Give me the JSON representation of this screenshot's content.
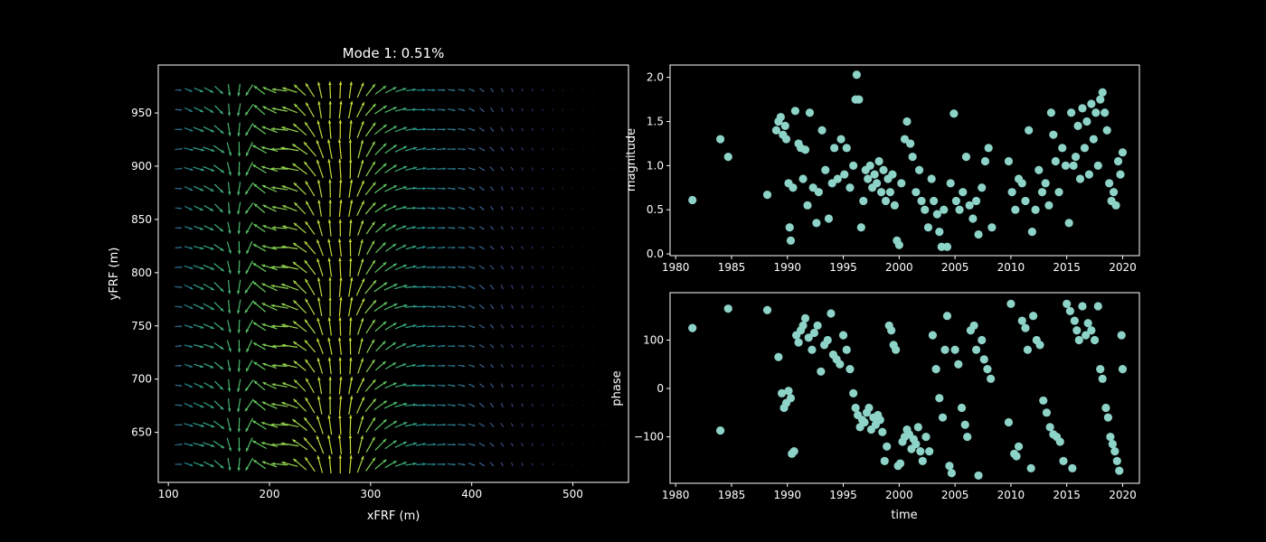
{
  "chart_data": [
    {
      "type": "quiver",
      "title": "Mode 1: 0.51%",
      "xlabel": "xFRF (m)",
      "ylabel": "yFRF (m)",
      "xlim": [
        90,
        555
      ],
      "ylim": [
        603,
        995
      ],
      "xticks": [
        100,
        200,
        300,
        400,
        500
      ],
      "yticks": [
        650,
        700,
        750,
        800,
        850,
        900,
        950
      ],
      "grid": false,
      "colormap": "viridis",
      "x_range": [
        110,
        545
      ],
      "x_step": 10,
      "y_range": [
        620,
        980
      ],
      "y_step": 18.5,
      "columns": [
        {
          "x": 110,
          "angle_deg": 0,
          "mag": 0.35
        },
        {
          "x": 120,
          "angle_deg": -20,
          "mag": 0.45
        },
        {
          "x": 130,
          "angle_deg": -20,
          "mag": 0.55
        },
        {
          "x": 140,
          "angle_deg": -25,
          "mag": 0.58
        },
        {
          "x": 150,
          "angle_deg": -40,
          "mag": 0.62
        },
        {
          "x": 160,
          "angle_deg": -80,
          "mag": 0.65
        },
        {
          "x": 170,
          "angle_deg": -95,
          "mag": 0.68
        },
        {
          "x": 180,
          "angle_deg": -120,
          "mag": 0.72
        },
        {
          "x": 190,
          "angle_deg": 145,
          "mag": 0.76
        },
        {
          "x": 200,
          "angle_deg": 160,
          "mag": 0.8
        },
        {
          "x": 210,
          "angle_deg": 175,
          "mag": 0.82
        },
        {
          "x": 220,
          "angle_deg": 165,
          "mag": 0.84
        },
        {
          "x": 230,
          "angle_deg": 140,
          "mag": 0.86
        },
        {
          "x": 240,
          "angle_deg": 125,
          "mag": 0.88
        },
        {
          "x": 250,
          "angle_deg": 105,
          "mag": 0.9
        },
        {
          "x": 260,
          "angle_deg": 95,
          "mag": 0.92
        },
        {
          "x": 270,
          "angle_deg": 90,
          "mag": 0.93
        },
        {
          "x": 280,
          "angle_deg": 85,
          "mag": 0.92
        },
        {
          "x": 290,
          "angle_deg": 70,
          "mag": 0.88
        },
        {
          "x": 300,
          "angle_deg": 55,
          "mag": 0.82
        },
        {
          "x": 310,
          "angle_deg": 40,
          "mag": 0.75
        },
        {
          "x": 320,
          "angle_deg": 30,
          "mag": 0.68
        },
        {
          "x": 330,
          "angle_deg": 20,
          "mag": 0.62
        },
        {
          "x": 340,
          "angle_deg": 10,
          "mag": 0.56
        },
        {
          "x": 350,
          "angle_deg": 5,
          "mag": 0.5
        },
        {
          "x": 360,
          "angle_deg": 0,
          "mag": 0.45
        },
        {
          "x": 370,
          "angle_deg": 0,
          "mag": 0.42
        },
        {
          "x": 380,
          "angle_deg": -5,
          "mag": 0.4
        },
        {
          "x": 390,
          "angle_deg": -10,
          "mag": 0.37
        },
        {
          "x": 400,
          "angle_deg": -20,
          "mag": 0.34
        },
        {
          "x": 410,
          "angle_deg": -35,
          "mag": 0.3
        },
        {
          "x": 420,
          "angle_deg": -50,
          "mag": 0.26
        },
        {
          "x": 430,
          "angle_deg": -60,
          "mag": 0.22
        },
        {
          "x": 440,
          "angle_deg": -65,
          "mag": 0.19
        },
        {
          "x": 450,
          "angle_deg": -70,
          "mag": 0.16
        },
        {
          "x": 460,
          "angle_deg": -75,
          "mag": 0.13
        },
        {
          "x": 470,
          "angle_deg": -80,
          "mag": 0.1
        },
        {
          "x": 480,
          "angle_deg": -85,
          "mag": 0.08
        },
        {
          "x": 490,
          "angle_deg": -90,
          "mag": 0.06
        },
        {
          "x": 500,
          "angle_deg": -90,
          "mag": 0.05
        },
        {
          "x": 510,
          "angle_deg": -90,
          "mag": 0.04
        },
        {
          "x": 520,
          "angle_deg": -90,
          "mag": 0.03
        },
        {
          "x": 530,
          "angle_deg": -90,
          "mag": 0.03
        },
        {
          "x": 540,
          "angle_deg": -90,
          "mag": 0.03
        }
      ]
    },
    {
      "type": "scatter",
      "xlabel": "",
      "ylabel": "magnitude",
      "xlim": [
        1979.5,
        2021.5
      ],
      "ylim": [
        -0.02,
        2.14
      ],
      "xticks": [
        1980,
        1985,
        1990,
        1995,
        2000,
        2005,
        2010,
        2015,
        2020
      ],
      "yticks": [
        0.0,
        0.5,
        1.0,
        1.5,
        2.0
      ],
      "ytick_labels": [
        "0.0",
        "0.5",
        "1.0",
        "1.5",
        "2.0"
      ],
      "color": "#8dd3c7",
      "grid": false,
      "points": [
        [
          1981.5,
          0.61
        ],
        [
          1984,
          1.3
        ],
        [
          1984.7,
          1.1
        ],
        [
          1988.2,
          0.67
        ],
        [
          1989.0,
          1.4
        ],
        [
          1989.2,
          1.5
        ],
        [
          1989.4,
          1.55
        ],
        [
          1989.6,
          1.35
        ],
        [
          1989.8,
          1.45
        ],
        [
          1989.9,
          1.3
        ],
        [
          1990.1,
          0.8
        ],
        [
          1990.2,
          0.3
        ],
        [
          1990.3,
          0.15
        ],
        [
          1990.5,
          0.75
        ],
        [
          1990.7,
          1.62
        ],
        [
          1991.0,
          1.25
        ],
        [
          1991.2,
          1.2
        ],
        [
          1991.4,
          0.85
        ],
        [
          1991.6,
          1.18
        ],
        [
          1991.8,
          0.55
        ],
        [
          1992.0,
          1.6
        ],
        [
          1992.3,
          0.75
        ],
        [
          1992.6,
          0.35
        ],
        [
          1992.8,
          0.7
        ],
        [
          1993.1,
          1.4
        ],
        [
          1993.4,
          0.95
        ],
        [
          1993.7,
          0.4
        ],
        [
          1994.0,
          0.8
        ],
        [
          1994.2,
          1.2
        ],
        [
          1994.5,
          0.85
        ],
        [
          1994.8,
          1.3
        ],
        [
          1995.1,
          0.9
        ],
        [
          1995.3,
          1.2
        ],
        [
          1995.6,
          0.75
        ],
        [
          1995.9,
          1.0
        ],
        [
          1996.1,
          1.75
        ],
        [
          1996.2,
          2.03
        ],
        [
          1996.4,
          1.75
        ],
        [
          1996.6,
          0.3
        ],
        [
          1996.8,
          0.6
        ],
        [
          1997.0,
          0.95
        ],
        [
          1997.2,
          0.85
        ],
        [
          1997.4,
          1.0
        ],
        [
          1997.6,
          0.75
        ],
        [
          1997.8,
          0.9
        ],
        [
          1998.0,
          0.8
        ],
        [
          1998.2,
          1.05
        ],
        [
          1998.4,
          0.7
        ],
        [
          1998.6,
          0.95
        ],
        [
          1998.8,
          0.6
        ],
        [
          1999.0,
          0.85
        ],
        [
          1999.2,
          0.7
        ],
        [
          1999.4,
          0.9
        ],
        [
          1999.6,
          0.55
        ],
        [
          1999.8,
          0.15
        ],
        [
          2000.0,
          0.1
        ],
        [
          2000.2,
          0.8
        ],
        [
          2000.5,
          1.3
        ],
        [
          2000.7,
          1.5
        ],
        [
          2001.0,
          1.25
        ],
        [
          2001.2,
          1.1
        ],
        [
          2001.5,
          0.7
        ],
        [
          2001.8,
          0.95
        ],
        [
          2002.0,
          0.6
        ],
        [
          2002.3,
          0.5
        ],
        [
          2002.6,
          0.3
        ],
        [
          2002.9,
          0.85
        ],
        [
          2003.1,
          0.6
        ],
        [
          2003.4,
          0.45
        ],
        [
          2003.6,
          0.25
        ],
        [
          2003.8,
          0.08
        ],
        [
          2004.0,
          0.5
        ],
        [
          2004.3,
          0.08
        ],
        [
          2004.6,
          0.8
        ],
        [
          2004.9,
          1.59
        ],
        [
          2005.1,
          0.6
        ],
        [
          2005.4,
          0.5
        ],
        [
          2005.7,
          0.7
        ],
        [
          2006.0,
          1.1
        ],
        [
          2006.3,
          0.55
        ],
        [
          2006.6,
          0.4
        ],
        [
          2006.9,
          0.6
        ],
        [
          2007.1,
          0.22
        ],
        [
          2007.4,
          0.75
        ],
        [
          2007.7,
          1.05
        ],
        [
          2008.0,
          1.2
        ],
        [
          2008.3,
          0.3
        ],
        [
          2009.8,
          1.05
        ],
        [
          2010.1,
          0.7
        ],
        [
          2010.4,
          0.5
        ],
        [
          2010.7,
          0.85
        ],
        [
          2011.0,
          0.8
        ],
        [
          2011.3,
          0.6
        ],
        [
          2011.6,
          1.4
        ],
        [
          2011.9,
          0.25
        ],
        [
          2012.2,
          0.5
        ],
        [
          2012.5,
          0.95
        ],
        [
          2012.8,
          0.7
        ],
        [
          2013.1,
          0.8
        ],
        [
          2013.4,
          0.55
        ],
        [
          2013.6,
          1.6
        ],
        [
          2013.8,
          1.35
        ],
        [
          2014.0,
          1.05
        ],
        [
          2014.3,
          0.7
        ],
        [
          2014.6,
          1.2
        ],
        [
          2014.9,
          1.0
        ],
        [
          2015.2,
          0.35
        ],
        [
          2015.4,
          1.6
        ],
        [
          2015.6,
          1.0
        ],
        [
          2015.8,
          1.1
        ],
        [
          2016.0,
          1.45
        ],
        [
          2016.2,
          0.85
        ],
        [
          2016.4,
          1.65
        ],
        [
          2016.6,
          1.2
        ],
        [
          2016.8,
          1.5
        ],
        [
          2017.0,
          0.9
        ],
        [
          2017.2,
          1.7
        ],
        [
          2017.4,
          1.3
        ],
        [
          2017.6,
          1.6
        ],
        [
          2017.8,
          1.0
        ],
        [
          2018.0,
          1.75
        ],
        [
          2018.2,
          1.83
        ],
        [
          2018.4,
          1.6
        ],
        [
          2018.6,
          1.4
        ],
        [
          2018.8,
          0.8
        ],
        [
          2019.0,
          0.6
        ],
        [
          2019.2,
          0.7
        ],
        [
          2019.4,
          0.55
        ],
        [
          2019.6,
          1.05
        ],
        [
          2019.8,
          0.9
        ],
        [
          2020.0,
          1.15
        ]
      ]
    },
    {
      "type": "scatter",
      "xlabel": "time",
      "ylabel": "phase",
      "xlim": [
        1979.5,
        2021.5
      ],
      "ylim": [
        -196,
        198
      ],
      "xticks": [
        1980,
        1985,
        1990,
        1995,
        2000,
        2005,
        2010,
        2015,
        2020
      ],
      "yticks": [
        -100,
        0,
        100
      ],
      "ytick_labels": [
        "−100",
        "0",
        "100"
      ],
      "color": "#8dd3c7",
      "grid": false,
      "points": [
        [
          1981.5,
          125
        ],
        [
          1984,
          -87
        ],
        [
          1984.7,
          165
        ],
        [
          1988.2,
          162
        ],
        [
          1989.2,
          65
        ],
        [
          1989.5,
          -10
        ],
        [
          1989.7,
          -40
        ],
        [
          1989.9,
          -30
        ],
        [
          1990.1,
          -5
        ],
        [
          1990.3,
          -20
        ],
        [
          1990.4,
          -135
        ],
        [
          1990.6,
          -130
        ],
        [
          1990.8,
          110
        ],
        [
          1991.0,
          95
        ],
        [
          1991.2,
          120
        ],
        [
          1991.4,
          130
        ],
        [
          1991.6,
          145
        ],
        [
          1991.9,
          105
        ],
        [
          1992.2,
          80
        ],
        [
          1992.4,
          115
        ],
        [
          1992.7,
          130
        ],
        [
          1993.0,
          35
        ],
        [
          1993.3,
          90
        ],
        [
          1993.6,
          100
        ],
        [
          1993.9,
          155
        ],
        [
          1994.1,
          70
        ],
        [
          1994.4,
          60
        ],
        [
          1994.7,
          50
        ],
        [
          1995.0,
          110
        ],
        [
          1995.3,
          80
        ],
        [
          1995.6,
          40
        ],
        [
          1995.9,
          -10
        ],
        [
          1996.1,
          -40
        ],
        [
          1996.3,
          -55
        ],
        [
          1996.5,
          -80
        ],
        [
          1996.7,
          -65
        ],
        [
          1996.9,
          -70
        ],
        [
          1997.1,
          -50
        ],
        [
          1997.3,
          -40
        ],
        [
          1997.5,
          -85
        ],
        [
          1997.7,
          -60
        ],
        [
          1997.9,
          -75
        ],
        [
          1998.1,
          -55
        ],
        [
          1998.3,
          -65
        ],
        [
          1998.5,
          -90
        ],
        [
          1998.7,
          -150
        ],
        [
          1998.9,
          -120
        ],
        [
          1999.1,
          130
        ],
        [
          1999.3,
          120
        ],
        [
          1999.5,
          90
        ],
        [
          1999.7,
          80
        ],
        [
          1999.9,
          -160
        ],
        [
          2000.1,
          -155
        ],
        [
          2000.3,
          -110
        ],
        [
          2000.5,
          -100
        ],
        [
          2000.7,
          -85
        ],
        [
          2000.9,
          -95
        ],
        [
          2001.1,
          -125
        ],
        [
          2001.3,
          -105
        ],
        [
          2001.5,
          -115
        ],
        [
          2001.7,
          -80
        ],
        [
          2001.9,
          -130
        ],
        [
          2002.1,
          -150
        ],
        [
          2002.4,
          -100
        ],
        [
          2002.7,
          -130
        ],
        [
          2003.0,
          110
        ],
        [
          2003.3,
          40
        ],
        [
          2003.6,
          -20
        ],
        [
          2003.9,
          -60
        ],
        [
          2004.1,
          80
        ],
        [
          2004.3,
          150
        ],
        [
          2004.5,
          -160
        ],
        [
          2004.7,
          -175
        ],
        [
          2005.0,
          80
        ],
        [
          2005.3,
          50
        ],
        [
          2005.6,
          -40
        ],
        [
          2005.9,
          -75
        ],
        [
          2006.1,
          -100
        ],
        [
          2006.4,
          120
        ],
        [
          2006.7,
          130
        ],
        [
          2006.9,
          80
        ],
        [
          2007.1,
          -180
        ],
        [
          2007.4,
          100
        ],
        [
          2007.6,
          60
        ],
        [
          2007.9,
          40
        ],
        [
          2008.2,
          20
        ],
        [
          2009.8,
          -70
        ],
        [
          2010.0,
          175
        ],
        [
          2010.3,
          -135
        ],
        [
          2010.5,
          -140
        ],
        [
          2010.7,
          -120
        ],
        [
          2011.0,
          140
        ],
        [
          2011.3,
          125
        ],
        [
          2011.5,
          80
        ],
        [
          2011.8,
          -165
        ],
        [
          2012.0,
          150
        ],
        [
          2012.3,
          100
        ],
        [
          2012.6,
          90
        ],
        [
          2012.9,
          -25
        ],
        [
          2013.2,
          -50
        ],
        [
          2013.5,
          -80
        ],
        [
          2013.8,
          -95
        ],
        [
          2014.1,
          -100
        ],
        [
          2014.4,
          -110
        ],
        [
          2014.7,
          -150
        ],
        [
          2015.0,
          175
        ],
        [
          2015.3,
          160
        ],
        [
          2015.5,
          -165
        ],
        [
          2015.7,
          140
        ],
        [
          2015.9,
          120
        ],
        [
          2016.1,
          100
        ],
        [
          2016.4,
          170
        ],
        [
          2016.7,
          110
        ],
        [
          2016.9,
          135
        ],
        [
          2017.2,
          120
        ],
        [
          2017.5,
          100
        ],
        [
          2017.8,
          170
        ],
        [
          2018.0,
          40
        ],
        [
          2018.2,
          20
        ],
        [
          2018.5,
          -40
        ],
        [
          2018.7,
          -60
        ],
        [
          2018.9,
          -100
        ],
        [
          2019.1,
          -115
        ],
        [
          2019.3,
          -130
        ],
        [
          2019.5,
          -150
        ],
        [
          2019.7,
          -170
        ],
        [
          2019.9,
          110
        ],
        [
          2020.0,
          40
        ]
      ]
    }
  ]
}
